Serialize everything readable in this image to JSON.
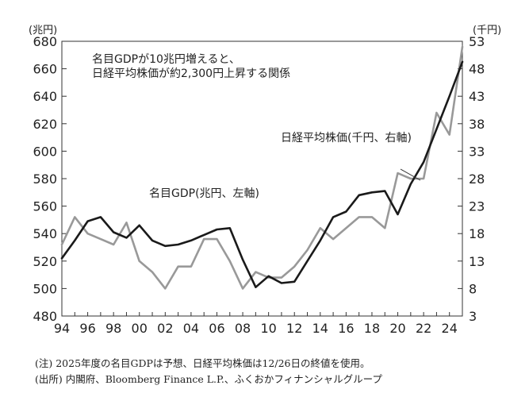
{
  "chart_data": {
    "type": "line",
    "left_unit": "(兆円)",
    "right_unit": "(千円)",
    "annotation": [
      "名目GDPが10兆円増えると、",
      "日経平均株価が約2,300円上昇する関係"
    ],
    "x_tick_labels": [
      "94",
      "96",
      "98",
      "00",
      "02",
      "04",
      "06",
      "08",
      "10",
      "12",
      "14",
      "16",
      "18",
      "20",
      "22",
      "24"
    ],
    "xlim": [
      1994,
      2025
    ],
    "y_left": {
      "ticks": [
        480,
        500,
        520,
        540,
        560,
        580,
        600,
        620,
        640,
        660,
        680
      ],
      "range": [
        480,
        680
      ]
    },
    "y_right": {
      "ticks": [
        3,
        8,
        13,
        18,
        23,
        28,
        33,
        38,
        43,
        48,
        53
      ],
      "range": [
        3,
        53
      ]
    },
    "grid": false,
    "series": [
      {
        "name": "名目GDP(兆円、左軸)",
        "axis": "left",
        "color": "#1a1a1a",
        "x": [
          1994,
          1995,
          1996,
          1997,
          1998,
          1999,
          2000,
          2001,
          2002,
          2003,
          2004,
          2005,
          2006,
          2007,
          2008,
          2009,
          2010,
          2011,
          2012,
          2013,
          2014,
          2015,
          2016,
          2017,
          2018,
          2019,
          2020,
          2021,
          2022,
          2023,
          2024,
          2025
        ],
        "values": [
          522,
          535,
          549,
          552,
          541,
          537,
          546,
          535,
          531,
          532,
          535,
          539,
          543,
          544,
          521,
          501,
          509,
          504,
          505,
          520,
          535,
          552,
          556,
          568,
          570,
          571,
          554,
          576,
          592,
          616,
          640,
          665
        ]
      },
      {
        "name": "日経平均株価(千円、右軸)",
        "axis": "right",
        "color": "#999999",
        "x": [
          1994,
          1995,
          1996,
          1997,
          1998,
          1999,
          2000,
          2001,
          2002,
          2003,
          2004,
          2005,
          2006,
          2007,
          2008,
          2009,
          2010,
          2011,
          2012,
          2013,
          2014,
          2015,
          2016,
          2017,
          2018,
          2019,
          2020,
          2021,
          2022,
          2023,
          2024,
          2025
        ],
        "values": [
          16,
          21,
          18,
          17,
          16,
          20,
          13,
          11,
          8,
          12,
          12,
          17,
          17,
          13,
          8,
          11,
          10,
          10,
          12,
          15,
          19,
          17,
          19,
          21,
          21,
          19,
          29,
          28,
          28,
          40,
          36,
          52
        ]
      }
    ]
  },
  "notes": [
    "(注) 2025年度の名目GDPは予想、日経平均株価は12/26日の終値を使用。",
    "(出所) 内閣府、Bloomberg Finance L.P.、ふくおかフィナンシャルグループ"
  ]
}
